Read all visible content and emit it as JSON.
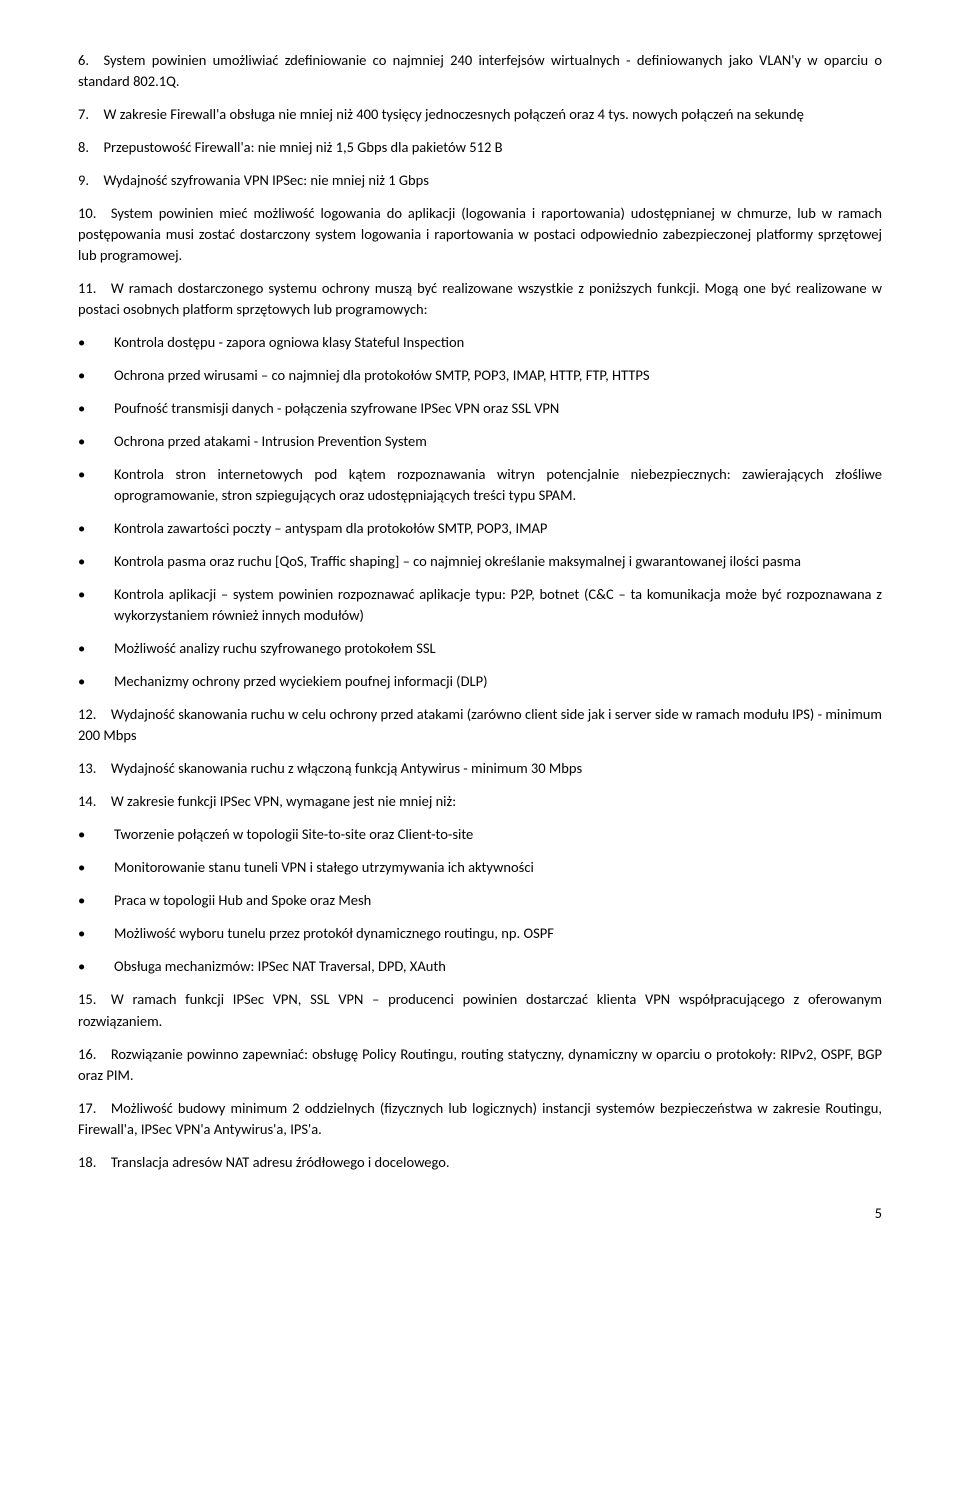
{
  "paras": {
    "p6": "6. System powinien umożliwiać zdefiniowanie co najmniej 240 interfejsów wirtualnych - definiowanych jako VLAN'y w oparciu o standard 802.1Q.",
    "p7": "7. W zakresie Firewall'a obsługa nie mniej niż 400 tysięcy jednoczesnych połączeń oraz 4 tys. nowych połączeń na sekundę",
    "p8": "8. Przepustowość Firewall'a: nie mniej niż 1,5 Gbps dla pakietów 512 B",
    "p9": "9. Wydajność szyfrowania VPN IPSec: nie mniej niż 1 Gbps",
    "p10": "10. System powinien mieć możliwość logowania do aplikacji (logowania i raportowania) udostępnianej w chmurze, lub w ramach postępowania musi zostać dostarczony system logowania i raportowania w postaci odpowiednio zabezpieczonej platformy sprzętowej lub programowej.",
    "p11": "11. W ramach dostarczonego systemu ochrony muszą być realizowane wszystkie z poniższych funkcji. Mogą one być realizowane w postaci osobnych platform sprzętowych lub programowych:",
    "b11_1": "Kontrola dostępu - zapora ogniowa klasy Stateful Inspection",
    "b11_2": "Ochrona przed wirusami – co najmniej dla protokołów SMTP, POP3, IMAP, HTTP, FTP, HTTPS",
    "b11_3": "Poufność transmisji danych  - połączenia szyfrowane IPSec VPN oraz SSL VPN",
    "b11_4": "Ochrona przed atakami  - Intrusion Prevention System",
    "b11_5": "Kontrola stron internetowych pod kątem rozpoznawania witryn potencjalnie niebezpiecznych: zawierających złośliwe oprogramowanie, stron szpiegujących oraz udostępniających treści typu SPAM.",
    "b11_6": "Kontrola zawartości poczty – antyspam dla protokołów SMTP, POP3, IMAP",
    "b11_7": "Kontrola pasma oraz ruchu [QoS, Traffic shaping] – co najmniej określanie maksymalnej i gwarantowanej ilości pasma",
    "b11_8": "Kontrola aplikacji – system powinien rozpoznawać aplikacje typu: P2P, botnet (C&C – ta komunikacja może być rozpoznawana z wykorzystaniem również innych modułów)",
    "b11_9": "Możliwość analizy ruchu szyfrowanego protokołem SSL",
    "b11_10": "Mechanizmy ochrony przed wyciekiem poufnej informacji (DLP)",
    "p12": "12. Wydajność skanowania ruchu w celu ochrony przed atakami (zarówno client side jak i server side w ramach modułu IPS)  - minimum 200 Mbps",
    "p13": "13. Wydajność skanowania ruchu z włączoną funkcją Antywirus - minimum 30 Mbps",
    "p14": "14. W zakresie funkcji IPSec VPN, wymagane jest nie mniej niż:",
    "b14_1": "Tworzenie połączeń w topologii Site-to-site oraz Client-to-site",
    "b14_2": "Monitorowanie stanu tuneli VPN i stałego utrzymywania ich aktywności",
    "b14_3": "Praca w topologii Hub and Spoke oraz Mesh",
    "b14_4": "Możliwość wyboru tunelu przez protokół dynamicznego routingu, np. OSPF",
    "b14_5": "Obsługa mechanizmów: IPSec NAT Traversal, DPD, XAuth",
    "p15": "15. W ramach funkcji IPSec VPN, SSL VPN – producenci  powinien dostarczać klienta VPN współpracującego z oferowanym rozwiązaniem.",
    "p16": "16. Rozwiązanie powinno zapewniać: obsługę Policy Routingu, routing statyczny, dynamiczny w oparciu o protokoły: RIPv2, OSPF, BGP oraz PIM.",
    "p17": "17. Możliwość budowy minimum 2 oddzielnych (fizycznych lub logicznych) instancji systemów bezpieczeństwa  w zakresie  Routingu, Firewall'a, IPSec VPN'a Antywirus'a, IPS'a.",
    "p18": "18. Translacja adresów NAT adresu źródłowego i docelowego.",
    "page": "5"
  }
}
